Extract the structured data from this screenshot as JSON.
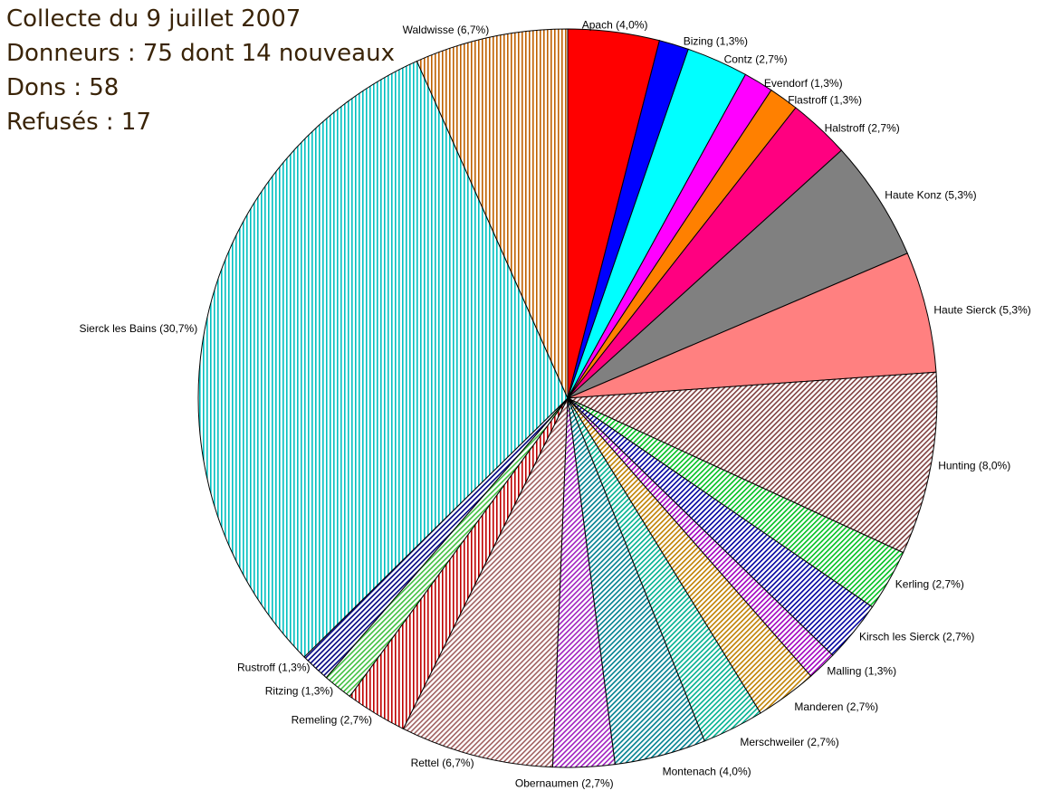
{
  "header": {
    "title": "Collecte du 9 juillet 2007",
    "donors": "Donneurs : 75 dont 14 nouveaux",
    "donations": "Dons : 58",
    "refused": "Refusés : 17"
  },
  "chart_data": {
    "type": "pie",
    "start": "12 o'clock",
    "direction": "clockwise",
    "slices": [
      {
        "label": "Apach (4,0%)",
        "value": 4.0,
        "color": "#ff0000",
        "fill": "solid"
      },
      {
        "label": "Bizing (1,3%)",
        "value": 1.3,
        "color": "#0000ff",
        "fill": "solid"
      },
      {
        "label": "Contz (2,7%)",
        "value": 2.7,
        "color": "#00ffff",
        "fill": "solid"
      },
      {
        "label": "Evendorf (1,3%)",
        "value": 1.3,
        "color": "#ff00ff",
        "fill": "solid"
      },
      {
        "label": "Flastroff (1,3%)",
        "value": 1.3,
        "color": "#ff8000",
        "fill": "solid"
      },
      {
        "label": "Halstroff (2,7%)",
        "value": 2.7,
        "color": "#ff0080",
        "fill": "solid"
      },
      {
        "label": "Haute Konz (5,3%)",
        "value": 5.3,
        "color": "#808080",
        "fill": "solid"
      },
      {
        "label": "Haute Sierck (5,3%)",
        "value": 5.3,
        "color": "#ff8080",
        "fill": "solid"
      },
      {
        "label": "Hunting (8,0%)",
        "value": 8.0,
        "color": "#804040",
        "fill": "diagonal"
      },
      {
        "label": "Kerling (2,7%)",
        "value": 2.7,
        "color": "#00c020",
        "fill": "diagonal"
      },
      {
        "label": "Kirsch les Sierck (2,7%)",
        "value": 2.7,
        "color": "#0000a0",
        "fill": "diagonal"
      },
      {
        "label": "Malling (1,3%)",
        "value": 1.3,
        "color": "#a000c0",
        "fill": "diagonal"
      },
      {
        "label": "Manderen (2,7%)",
        "value": 2.7,
        "color": "#c08000",
        "fill": "diagonal"
      },
      {
        "label": "Merschweiler (2,7%)",
        "value": 2.7,
        "color": "#00b090",
        "fill": "diagonal"
      },
      {
        "label": "Montenach (4,0%)",
        "value": 4.0,
        "color": "#008090",
        "fill": "diagonal"
      },
      {
        "label": "Obernaumen (2,7%)",
        "value": 2.7,
        "color": "#a020c0",
        "fill": "diagonal"
      },
      {
        "label": "Rettel (6,7%)",
        "value": 6.7,
        "color": "#a06060",
        "fill": "diagonal"
      },
      {
        "label": "Remeling (2,7%)",
        "value": 2.7,
        "color": "#c00000",
        "fill": "vertical"
      },
      {
        "label": "Ritzing (1,3%)",
        "value": 1.3,
        "color": "#40c040",
        "fill": "diagonal"
      },
      {
        "label": "Rustroff (1,3%)",
        "value": 1.3,
        "color": "#000080",
        "fill": "diagonal"
      },
      {
        "label": "Sierck les Bains (30,7%)",
        "value": 30.7,
        "color": "#00c0c0",
        "fill": "vertical"
      },
      {
        "label": "Waldwisse (6,7%)",
        "value": 6.7,
        "color": "#c06000",
        "fill": "vertical"
      }
    ]
  }
}
